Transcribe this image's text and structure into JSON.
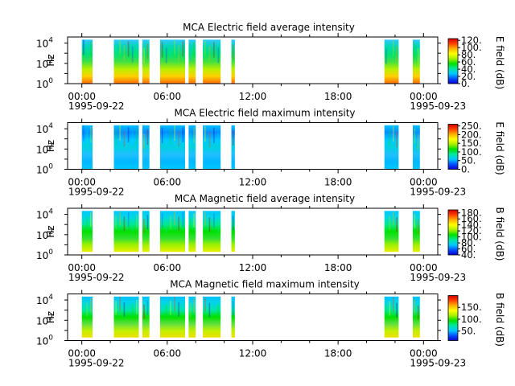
{
  "colors": {
    "colormap": [
      "#0a00d0",
      "#0050ff",
      "#00c8ff",
      "#00e8a0",
      "#00e000",
      "#a8f000",
      "#ffff00",
      "#ffb000",
      "#ff4000",
      "#d00000"
    ],
    "axis": "#000000",
    "background": "#ffffff"
  },
  "chart_data": [
    {
      "type": "heatmap",
      "title": "MCA  Electric field average intensity",
      "ylabel": "Hz",
      "y_scale": "log",
      "y_ticks": [
        {
          "base": "10",
          "exp": "0"
        },
        {
          "base": "10",
          "exp": "2"
        },
        {
          "base": "10",
          "exp": "4"
        }
      ],
      "x_ticks": [
        {
          "time": "00:00",
          "date": "1995-09-22"
        },
        {
          "time": "06:00",
          "date": ""
        },
        {
          "time": "12:00",
          "date": ""
        },
        {
          "time": "18:00",
          "date": ""
        },
        {
          "time": "00:00",
          "date": "1995-09-23"
        }
      ],
      "xlim_hours": [
        -1,
        25
      ],
      "ylim": [
        1,
        40000
      ],
      "colorbar": {
        "label": "E field (dB)",
        "range": [
          0,
          125
        ],
        "ticks": [
          "0.",
          "20.",
          "40.",
          "60.",
          "80.",
          "100.",
          "120."
        ]
      },
      "data_intervals_hours": [
        [
          0.0,
          0.75
        ],
        [
          2.25,
          4.0
        ],
        [
          4.25,
          4.75
        ],
        [
          5.5,
          7.25
        ],
        [
          7.5,
          8.0
        ],
        [
          8.5,
          9.75
        ],
        [
          10.5,
          10.75
        ],
        [
          21.25,
          22.25
        ],
        [
          23.25,
          23.75
        ]
      ],
      "level_db": 60
    },
    {
      "type": "heatmap",
      "title": "MCA  Electric field maximum intensity",
      "ylabel": "Hz",
      "y_scale": "log",
      "y_ticks": [
        {
          "base": "10",
          "exp": "0"
        },
        {
          "base": "10",
          "exp": "2"
        },
        {
          "base": "10",
          "exp": "4"
        }
      ],
      "x_ticks": [
        {
          "time": "00:00",
          "date": "1995-09-22"
        },
        {
          "time": "06:00",
          "date": ""
        },
        {
          "time": "12:00",
          "date": ""
        },
        {
          "time": "18:00",
          "date": ""
        },
        {
          "time": "00:00",
          "date": "1995-09-23"
        }
      ],
      "xlim_hours": [
        -1,
        25
      ],
      "ylim": [
        1,
        40000
      ],
      "colorbar": {
        "label": "E field (dB)",
        "range": [
          0,
          260
        ],
        "ticks": [
          "0.",
          "50.",
          "100.",
          "150.",
          "200.",
          "250."
        ]
      },
      "data_intervals_hours": [
        [
          0.0,
          0.75
        ],
        [
          2.25,
          4.0
        ],
        [
          4.25,
          4.75
        ],
        [
          5.5,
          7.25
        ],
        [
          7.5,
          8.0
        ],
        [
          8.5,
          9.75
        ],
        [
          10.5,
          10.75
        ],
        [
          21.25,
          22.25
        ],
        [
          23.25,
          23.75
        ]
      ],
      "level_db": 100
    },
    {
      "type": "heatmap",
      "title": "MCA  Magnetic field average intensity",
      "ylabel": "Hz",
      "y_scale": "log",
      "y_ticks": [
        {
          "base": "10",
          "exp": "0"
        },
        {
          "base": "10",
          "exp": "2"
        },
        {
          "base": "10",
          "exp": "4"
        }
      ],
      "x_ticks": [
        {
          "time": "00:00",
          "date": "1995-09-22"
        },
        {
          "time": "06:00",
          "date": ""
        },
        {
          "time": "12:00",
          "date": ""
        },
        {
          "time": "18:00",
          "date": ""
        },
        {
          "time": "00:00",
          "date": "1995-09-23"
        }
      ],
      "xlim_hours": [
        -1,
        25
      ],
      "ylim": [
        1,
        40000
      ],
      "colorbar": {
        "label": "B field (dB)",
        "range": [
          40,
          190
        ],
        "ticks": [
          "40.",
          "60.",
          "80.",
          "100.",
          "120.",
          "140.",
          "160.",
          "180."
        ]
      },
      "data_intervals_hours": [
        [
          0.0,
          0.75
        ],
        [
          2.25,
          4.0
        ],
        [
          4.25,
          4.75
        ],
        [
          5.5,
          7.25
        ],
        [
          7.5,
          8.0
        ],
        [
          8.5,
          9.75
        ],
        [
          10.5,
          10.75
        ],
        [
          21.25,
          22.25
        ],
        [
          23.25,
          23.75
        ]
      ],
      "level_db": 105
    },
    {
      "type": "heatmap",
      "title": "MCA  Magnetic field maximum intensity",
      "ylabel": "Hz",
      "y_scale": "log",
      "y_ticks": [
        {
          "base": "10",
          "exp": "0"
        },
        {
          "base": "10",
          "exp": "2"
        },
        {
          "base": "10",
          "exp": "4"
        }
      ],
      "x_ticks": [
        {
          "time": "00:00",
          "date": "1995-09-22"
        },
        {
          "time": "06:00",
          "date": ""
        },
        {
          "time": "12:00",
          "date": ""
        },
        {
          "time": "18:00",
          "date": ""
        },
        {
          "time": "00:00",
          "date": "1995-09-23"
        }
      ],
      "xlim_hours": [
        -1,
        25
      ],
      "ylim": [
        1,
        40000
      ],
      "colorbar": {
        "label": "B field (dB)",
        "range": [
          10,
          200
        ],
        "ticks": [
          "50.",
          "100.",
          "150."
        ],
        "tick_values": [
          50,
          100,
          150
        ]
      },
      "data_intervals_hours": [
        [
          0.0,
          0.75
        ],
        [
          2.25,
          4.0
        ],
        [
          4.25,
          4.75
        ],
        [
          5.5,
          7.25
        ],
        [
          7.5,
          8.0
        ],
        [
          8.5,
          9.75
        ],
        [
          10.5,
          10.75
        ],
        [
          21.25,
          22.25
        ],
        [
          23.25,
          23.75
        ]
      ],
      "level_db": 110
    }
  ]
}
